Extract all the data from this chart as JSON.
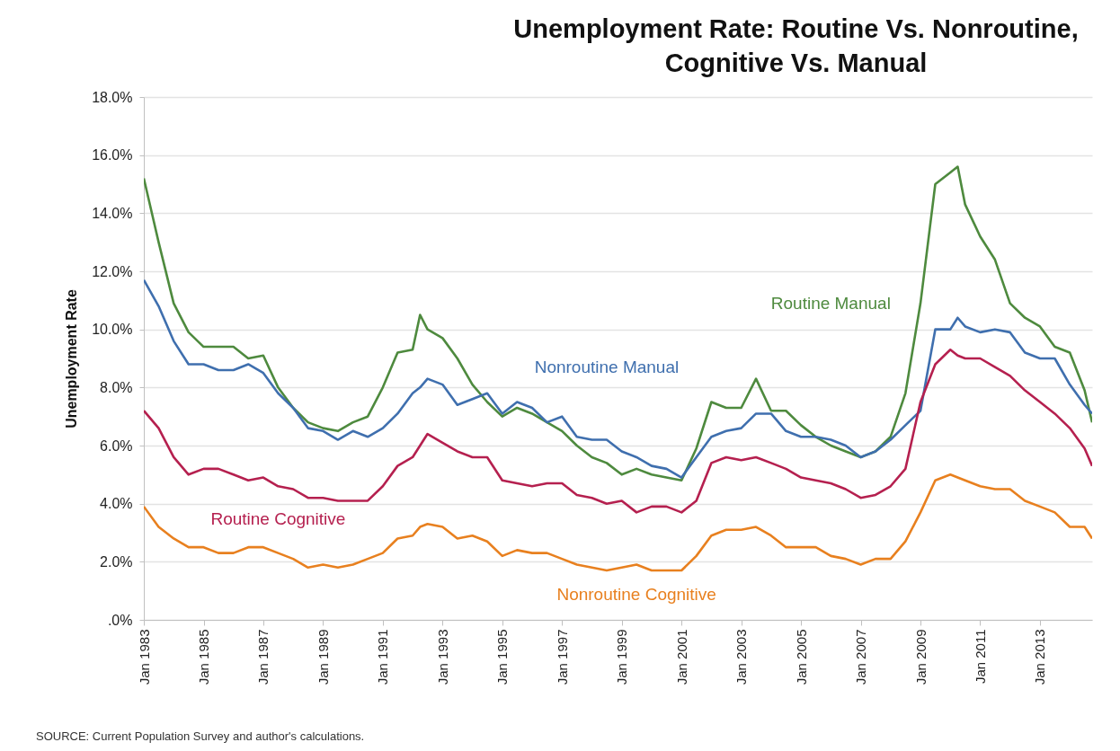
{
  "chart_data": {
    "type": "line",
    "title": "Unemployment Rate: Routine Vs. Nonroutine, Cognitive Vs. Manual",
    "ylabel": "Unemployment Rate",
    "annotations": [
      "SOURCE: Current Population Survey and author's calculations."
    ],
    "x": [
      "1983-01",
      "1983-07",
      "1984-01",
      "1984-07",
      "1985-01",
      "1985-07",
      "1986-01",
      "1986-07",
      "1987-01",
      "1987-07",
      "1988-01",
      "1988-07",
      "1989-01",
      "1989-07",
      "1990-01",
      "1990-07",
      "1991-01",
      "1991-07",
      "1992-01",
      "1992-04",
      "1992-07",
      "1993-01",
      "1993-07",
      "1994-01",
      "1994-07",
      "1995-01",
      "1995-07",
      "1996-01",
      "1996-07",
      "1997-01",
      "1997-07",
      "1998-01",
      "1998-07",
      "1999-01",
      "1999-07",
      "2000-01",
      "2000-07",
      "2001-01",
      "2001-07",
      "2002-01",
      "2002-07",
      "2003-01",
      "2003-07",
      "2004-01",
      "2004-07",
      "2005-01",
      "2005-07",
      "2006-01",
      "2006-07",
      "2007-01",
      "2007-07",
      "2008-01",
      "2008-07",
      "2009-01",
      "2009-07",
      "2010-01",
      "2010-04",
      "2010-07",
      "2011-01",
      "2011-07",
      "2012-01",
      "2012-07",
      "2013-01",
      "2013-07",
      "2014-01",
      "2014-07",
      "2014-10"
    ],
    "series": [
      {
        "name": "Routine Manual",
        "color": "#4e8a3e",
        "values": [
          15.2,
          13.0,
          10.9,
          9.9,
          9.4,
          9.4,
          9.4,
          9.0,
          9.1,
          8.0,
          7.3,
          6.8,
          6.6,
          6.5,
          6.8,
          7.0,
          8.0,
          9.2,
          9.3,
          10.5,
          10.0,
          9.7,
          9.0,
          8.1,
          7.5,
          7.0,
          7.3,
          7.1,
          6.8,
          6.5,
          6.0,
          5.6,
          5.4,
          5.0,
          5.2,
          5.0,
          4.9,
          4.8,
          5.9,
          7.5,
          7.3,
          7.3,
          8.3,
          7.2,
          7.2,
          6.7,
          6.3,
          6.0,
          5.8,
          5.6,
          5.8,
          6.3,
          7.8,
          10.9,
          15.0,
          15.4,
          15.6,
          14.3,
          13.2,
          12.4,
          10.9,
          10.4,
          10.1,
          9.4,
          9.2,
          7.9,
          6.8
        ]
      },
      {
        "name": "Nonroutine Manual",
        "color": "#3f6fae",
        "values": [
          11.7,
          10.8,
          9.6,
          8.8,
          8.8,
          8.6,
          8.6,
          8.8,
          8.5,
          7.8,
          7.3,
          6.6,
          6.5,
          6.2,
          6.5,
          6.3,
          6.6,
          7.1,
          7.8,
          8.0,
          8.3,
          8.1,
          7.4,
          7.6,
          7.8,
          7.1,
          7.5,
          7.3,
          6.8,
          7.0,
          6.3,
          6.2,
          6.2,
          5.8,
          5.6,
          5.3,
          5.2,
          4.9,
          5.6,
          6.3,
          6.5,
          6.6,
          7.1,
          7.1,
          6.5,
          6.3,
          6.3,
          6.2,
          6.0,
          5.6,
          5.8,
          6.2,
          6.7,
          7.2,
          10.0,
          10.0,
          10.4,
          10.1,
          9.9,
          10.0,
          9.9,
          9.2,
          9.0,
          9.0,
          8.1,
          7.4,
          7.1
        ]
      },
      {
        "name": "Routine Cognitive",
        "color": "#b5204f",
        "values": [
          7.2,
          6.6,
          5.6,
          5.0,
          5.2,
          5.2,
          5.0,
          4.8,
          4.9,
          4.6,
          4.5,
          4.2,
          4.2,
          4.1,
          4.1,
          4.1,
          4.6,
          5.3,
          5.6,
          6.0,
          6.4,
          6.1,
          5.8,
          5.6,
          5.6,
          4.8,
          4.7,
          4.6,
          4.7,
          4.7,
          4.3,
          4.2,
          4.0,
          4.1,
          3.7,
          3.9,
          3.9,
          3.7,
          4.1,
          5.4,
          5.6,
          5.5,
          5.6,
          5.4,
          5.2,
          4.9,
          4.8,
          4.7,
          4.5,
          4.2,
          4.3,
          4.6,
          5.2,
          7.5,
          8.8,
          9.3,
          9.1,
          9.0,
          9.0,
          8.7,
          8.4,
          7.9,
          7.5,
          7.1,
          6.6,
          5.9,
          5.3
        ]
      },
      {
        "name": "Nonroutine Cognitive",
        "color": "#e8801f",
        "values": [
          3.9,
          3.2,
          2.8,
          2.5,
          2.5,
          2.3,
          2.3,
          2.5,
          2.5,
          2.3,
          2.1,
          1.8,
          1.9,
          1.8,
          1.9,
          2.1,
          2.3,
          2.8,
          2.9,
          3.2,
          3.3,
          3.2,
          2.8,
          2.9,
          2.7,
          2.2,
          2.4,
          2.3,
          2.3,
          2.1,
          1.9,
          1.8,
          1.7,
          1.8,
          1.9,
          1.7,
          1.7,
          1.7,
          2.2,
          2.9,
          3.1,
          3.1,
          3.2,
          2.9,
          2.5,
          2.5,
          2.5,
          2.2,
          2.1,
          1.9,
          2.1,
          2.1,
          2.7,
          3.7,
          4.8,
          5.0,
          4.9,
          4.8,
          4.6,
          4.5,
          4.5,
          4.1,
          3.9,
          3.7,
          3.2,
          3.2,
          2.8
        ]
      }
    ],
    "xlim": [
      "1983-01",
      "2014-10"
    ],
    "xticks": [
      {
        "value": "1983-01",
        "label": "Jan 1983"
      },
      {
        "value": "1985-01",
        "label": "Jan 1985"
      },
      {
        "value": "1987-01",
        "label": "Jan 1987"
      },
      {
        "value": "1989-01",
        "label": "Jan 1989"
      },
      {
        "value": "1991-01",
        "label": "Jan 1991"
      },
      {
        "value": "1993-01",
        "label": "Jan 1993"
      },
      {
        "value": "1995-01",
        "label": "Jan 1995"
      },
      {
        "value": "1997-01",
        "label": "Jan 1997"
      },
      {
        "value": "1999-01",
        "label": "Jan 1999"
      },
      {
        "value": "2001-01",
        "label": "Jan 2001"
      },
      {
        "value": "2003-01",
        "label": "Jan 2003"
      },
      {
        "value": "2005-01",
        "label": "Jan 2005"
      },
      {
        "value": "2007-01",
        "label": "Jan 2007"
      },
      {
        "value": "2009-01",
        "label": "Jan 2009"
      },
      {
        "value": "2011-01",
        "label": "Jan 2011"
      },
      {
        "value": "2013-01",
        "label": "Jan 2013"
      }
    ],
    "ylim": [
      0,
      18
    ],
    "yticks": [
      {
        "value": 0,
        "label": ".0%"
      },
      {
        "value": 2,
        "label": "2.0%"
      },
      {
        "value": 4,
        "label": "4.0%"
      },
      {
        "value": 6,
        "label": "6.0%"
      },
      {
        "value": 8,
        "label": "8.0%"
      },
      {
        "value": 10,
        "label": "10.0%"
      },
      {
        "value": 12,
        "label": "12.0%"
      },
      {
        "value": 14,
        "label": "14.0%"
      },
      {
        "value": 16,
        "label": "16.0%"
      },
      {
        "value": 18,
        "label": "18.0%"
      }
    ],
    "grid": "y"
  }
}
